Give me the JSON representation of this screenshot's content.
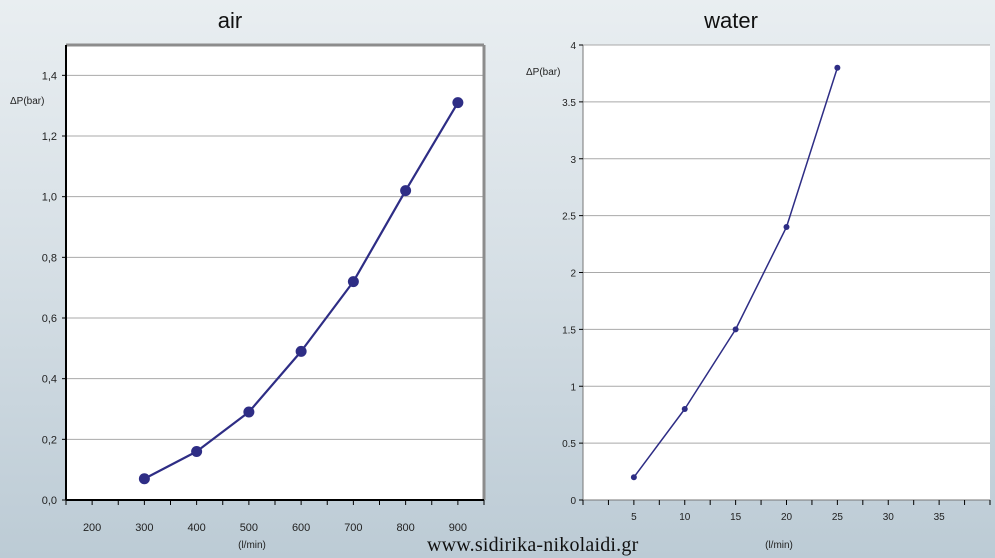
{
  "watermark": "www.sidirika-nikolaidi.gr",
  "chart_data": [
    {
      "type": "line",
      "title": "air",
      "ylabel": "ΔP(bar)",
      "xlabel": "(l/min)",
      "x": [
        300,
        400,
        500,
        600,
        700,
        800,
        900
      ],
      "series": [
        {
          "values": [
            0.07,
            0.16,
            0.29,
            0.49,
            0.72,
            1.02,
            1.31
          ]
        }
      ],
      "xticks": [
        "200",
        "300",
        "400",
        "500",
        "600",
        "700",
        "800",
        "900"
      ],
      "yticks": [
        "0,0",
        "0,2",
        "0,4",
        "0,6",
        "0,8",
        "1,0",
        "1,2",
        "1,4"
      ],
      "ylim": [
        0,
        1.5
      ],
      "xlim": [
        150,
        950
      ],
      "grid": true,
      "color": "#2e2d85",
      "plot_bg": "#ffffff",
      "frame_color": "#8c8c8c"
    },
    {
      "type": "line",
      "title": "water",
      "ylabel": "ΔP(bar)",
      "xlabel": "(l/min)",
      "x": [
        5,
        10,
        15,
        20,
        25
      ],
      "series": [
        {
          "values": [
            0.2,
            0.8,
            1.5,
            2.4,
            3.8
          ]
        }
      ],
      "xticks": [
        "5",
        "10",
        "15",
        "20",
        "25",
        "30",
        "35"
      ],
      "yticks": [
        "0",
        "0.5",
        "1",
        "1.5",
        "2",
        "2.5",
        "3",
        "3.5",
        "4"
      ],
      "ylim": [
        0,
        4
      ],
      "xlim": [
        0,
        40
      ],
      "grid": true,
      "color": "#2e2d85",
      "plot_bg": "#ffffff",
      "frame_color": "#8c8c8c"
    }
  ]
}
